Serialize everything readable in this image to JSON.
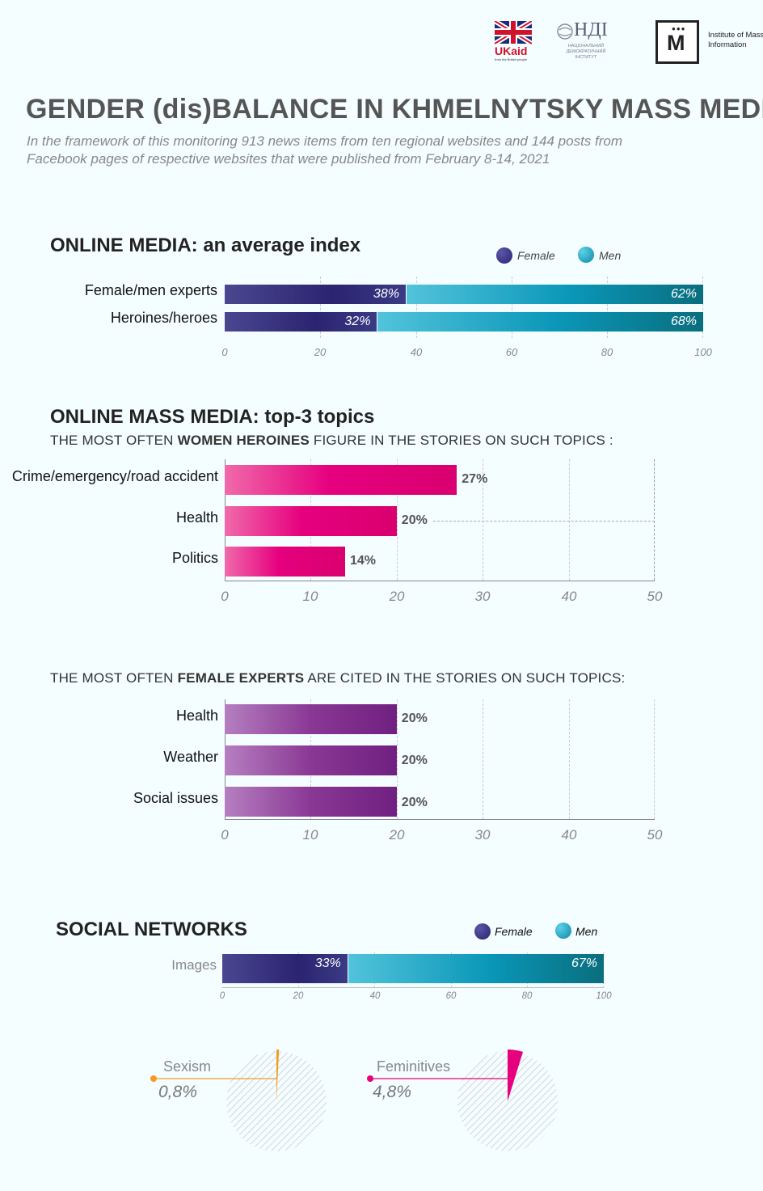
{
  "logos": {
    "ukaid_text": "UKaid",
    "ukaid_sub": "from the British people",
    "ndi_text": "НДІ",
    "ndi_sub": "НАЦІОНАЛЬНИЙ ДЕМОКРАТИЧНИЙ ІНСТИТУТ",
    "imi_letter": "M",
    "imi_name": "Institute of Mass Information"
  },
  "header": {
    "title": "GENDER (dis)BALANCE IN KHMELNYTSKY MASS MEDIA",
    "subtitle": "In the framework of this monitoring 913 news items from ten regional websites and 144 posts from Facebook pages of respective websites that were published from February 8-14, 2021"
  },
  "colors": {
    "female": "#2b2470",
    "men": "#0a97b8",
    "heroines": "#e6007e",
    "experts": "#8a3895",
    "sexism": "#f39c22",
    "feminitives": "#e6007e"
  },
  "chart_data": [
    {
      "type": "bar",
      "stacked": true,
      "orientation": "horizontal",
      "title": "ONLINE MEDIA: an average index",
      "categories": [
        "Female/men experts",
        "Heroines/heroes"
      ],
      "series": [
        {
          "name": "Female",
          "values": [
            38,
            32
          ],
          "labels": [
            "38%",
            "32%"
          ]
        },
        {
          "name": "Men",
          "values": [
            62,
            68
          ],
          "labels": [
            "62%",
            "68%"
          ]
        }
      ],
      "xlim": [
        0,
        100
      ],
      "xticks": [
        "0",
        "20",
        "40",
        "60",
        "80",
        "100"
      ],
      "legend": "top-right"
    },
    {
      "type": "bar",
      "orientation": "horizontal",
      "title": "ONLINE MASS MEDIA: top-3 topics",
      "subtitle_parts": [
        "THE MOST OFTEN ",
        "WOMEN HEROINES",
        " FIGURE IN THE STORIES ON SUCH TOPICS :"
      ],
      "categories": [
        "Crime/emergency/road accident",
        "Health",
        "Politics"
      ],
      "values": [
        27,
        20,
        14
      ],
      "labels": [
        "27%",
        "20%",
        "14%"
      ],
      "xlim": [
        0,
        50
      ],
      "xticks": [
        "0",
        "10",
        "20",
        "30",
        "40",
        "50"
      ]
    },
    {
      "type": "bar",
      "orientation": "horizontal",
      "subtitle_parts": [
        "THE MOST OFTEN ",
        "FEMALE EXPERTS",
        " ARE CITED IN THE STORIES ON SUCH TOPICS:"
      ],
      "categories": [
        "Health",
        "Weather",
        "Social issues"
      ],
      "values": [
        20,
        20,
        20
      ],
      "labels": [
        "20%",
        "20%",
        "20%"
      ],
      "xlim": [
        0,
        50
      ],
      "xticks": [
        "0",
        "10",
        "20",
        "30",
        "40",
        "50"
      ]
    },
    {
      "type": "bar",
      "stacked": true,
      "orientation": "horizontal",
      "title": "SOCIAL NETWORKS",
      "categories": [
        "Images"
      ],
      "series": [
        {
          "name": "Female",
          "values": [
            33
          ],
          "labels": [
            "33%"
          ]
        },
        {
          "name": "Men",
          "values": [
            67
          ],
          "labels": [
            "67%"
          ]
        }
      ],
      "xlim": [
        0,
        100
      ],
      "xticks": [
        "0",
        "20",
        "40",
        "60",
        "80",
        "100"
      ],
      "legend": "top-right"
    },
    {
      "type": "pie",
      "label": "Sexism",
      "value": 0.8,
      "value_label": "0,8%"
    },
    {
      "type": "pie",
      "label": "Feminitives",
      "value": 4.8,
      "value_label": "4,8%"
    }
  ]
}
